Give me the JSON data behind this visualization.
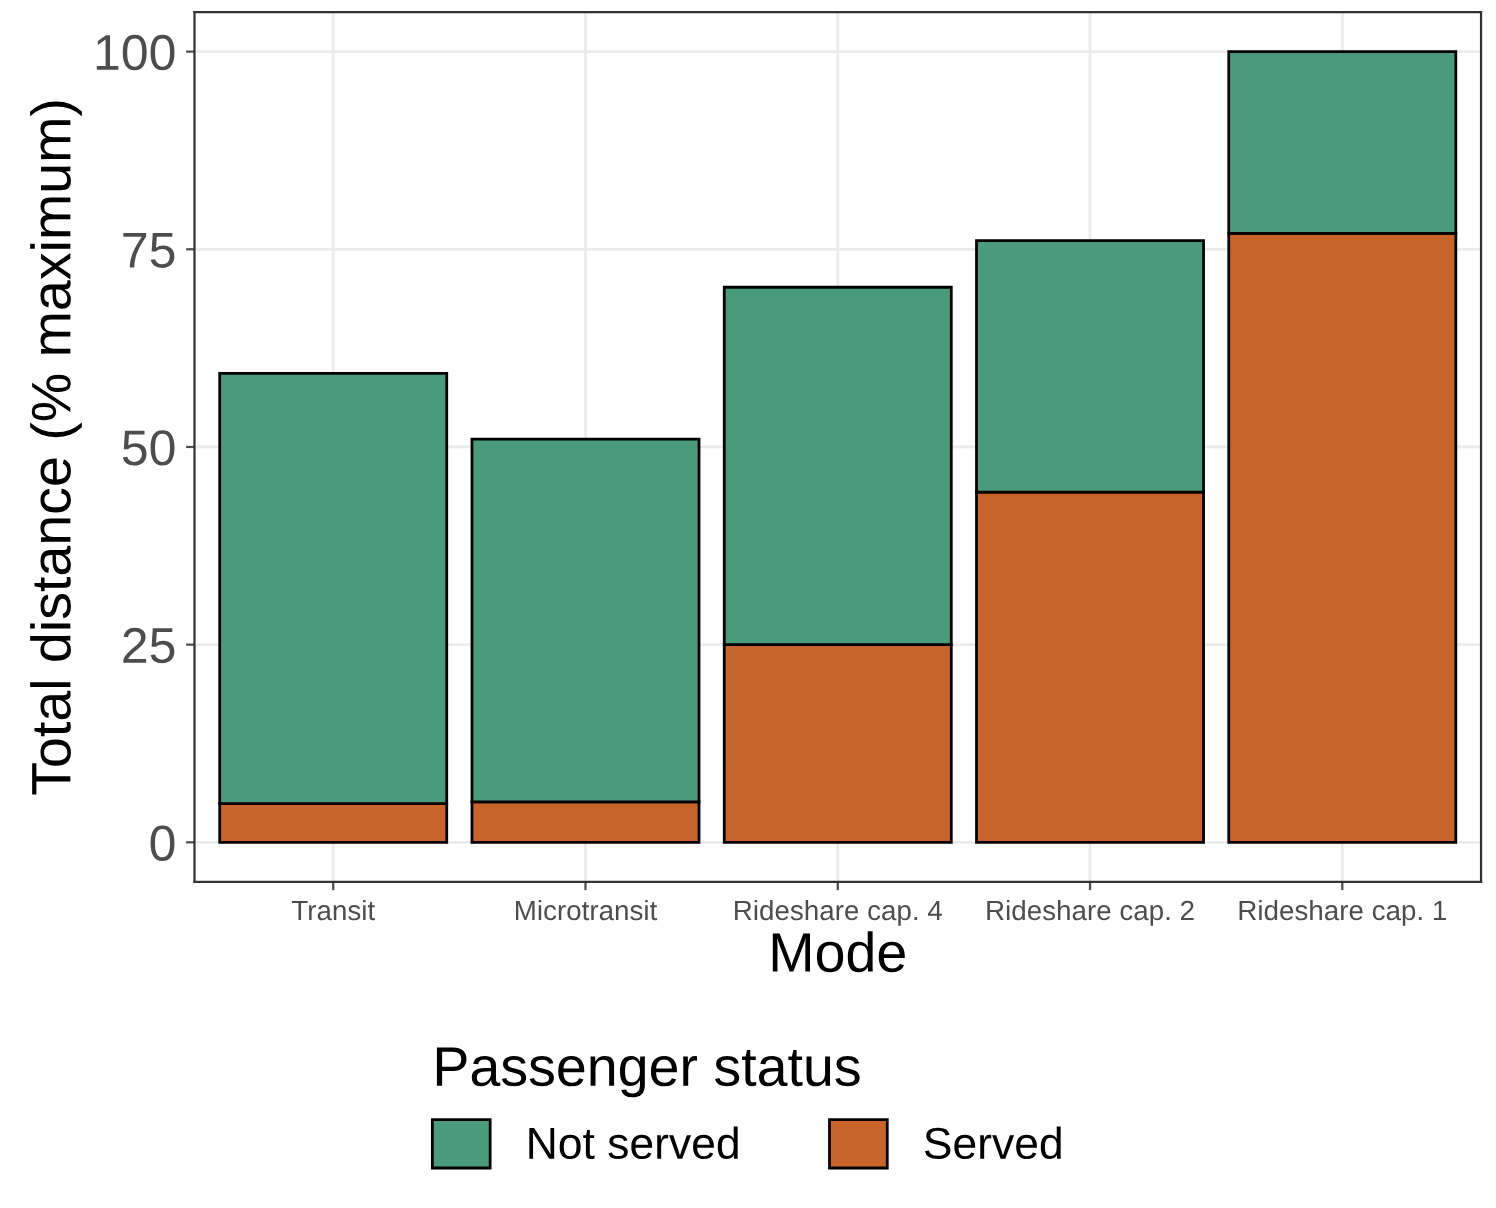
{
  "chart_data": {
    "type": "bar",
    "stacked": true,
    "xlabel": "Mode",
    "ylabel": "Total distance (% maximum)",
    "legend_title": "Passenger status",
    "legend": "bottom",
    "grid": true,
    "categories": [
      "Transit",
      "Microtransit",
      "Rideshare cap. 4",
      "Rideshare cap. 2",
      "Rideshare cap. 1"
    ],
    "series": [
      {
        "name": "Served",
        "color": "#c8642a",
        "values": [
          4.9,
          5.1,
          25.0,
          44.3,
          77.0
        ]
      },
      {
        "name": "Not served",
        "color": "#4a9b7c",
        "values": [
          54.4,
          45.9,
          45.2,
          31.8,
          23.0
        ]
      }
    ],
    "ylim": [
      -5,
      105
    ],
    "yticks": [
      0,
      25,
      50,
      75,
      100
    ]
  }
}
